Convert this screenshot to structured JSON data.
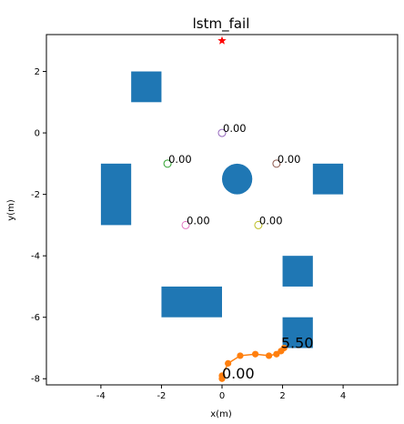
{
  "chart_data": {
    "type": "scatter",
    "title": "lstm_fail",
    "xlabel": "x(m)",
    "ylabel": "y(m)",
    "xlim": [
      -5.8,
      5.8
    ],
    "ylim": [
      -8.2,
      3.2
    ],
    "xticks": [
      -4,
      -2,
      0,
      2,
      4
    ],
    "yticks": [
      -8,
      -6,
      -4,
      -2,
      0,
      2
    ],
    "grid": false,
    "goal": {
      "x": 0,
      "y": 3,
      "color": "#ff0000",
      "marker": "star"
    },
    "obstacles": [
      {
        "shape": "rect",
        "x0": -3.0,
        "y0": 1.0,
        "x1": -2.0,
        "y1": 2.0
      },
      {
        "shape": "rect",
        "x0": -4.0,
        "y0": -3.0,
        "x1": -3.0,
        "y1": -1.0
      },
      {
        "shape": "rect",
        "x0": 3.0,
        "y0": -2.0,
        "x1": 4.0,
        "y1": -1.0
      },
      {
        "shape": "rect",
        "x0": 2.0,
        "y0": -5.0,
        "x1": 3.0,
        "y1": -4.0
      },
      {
        "shape": "rect",
        "x0": -2.0,
        "y0": -6.0,
        "x1": 0.0,
        "y1": -5.0
      },
      {
        "shape": "rect",
        "x0": 2.0,
        "y0": -7.0,
        "x1": 3.0,
        "y1": -6.0
      },
      {
        "shape": "circle",
        "cx": 0.5,
        "cy": -1.5,
        "r": 0.5
      }
    ],
    "obstacle_color": "#1f77b4",
    "pedestrians": [
      {
        "x": 0.0,
        "y": 0.0,
        "label": "0.00",
        "color": "#9467bd"
      },
      {
        "x": -1.8,
        "y": -1.0,
        "label": "0.00",
        "color": "#2ca02c"
      },
      {
        "x": 1.8,
        "y": -1.0,
        "label": "0.00",
        "color": "#8c564b"
      },
      {
        "x": -1.2,
        "y": -3.0,
        "label": "0.00",
        "color": "#e377c2"
      },
      {
        "x": 1.2,
        "y": -3.0,
        "label": "0.00",
        "color": "#bcbd22"
      }
    ],
    "robot_path": {
      "color": "#ff7f0e",
      "x": [
        0.0,
        0.0,
        0.2,
        0.6,
        1.1,
        1.55,
        1.8,
        1.95,
        2.05
      ],
      "y": [
        -8.0,
        -7.9,
        -7.5,
        -7.25,
        -7.2,
        -7.25,
        -7.2,
        -7.1,
        -7.0
      ]
    },
    "time_labels": [
      {
        "x": 0.0,
        "y": -8.0,
        "text": "0.00"
      },
      {
        "x": 1.95,
        "y": -7.0,
        "text": "5.50"
      }
    ]
  }
}
